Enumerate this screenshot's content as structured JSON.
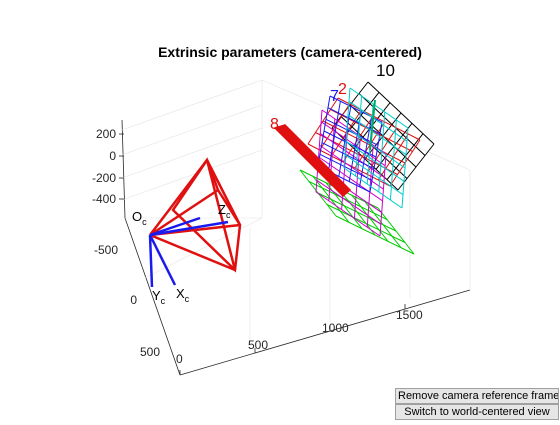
{
  "figure": {
    "title": "Extrinsic parameters (camera-centered)"
  },
  "axes": {
    "z_ticks": [
      "200",
      "0",
      "-200",
      "-400"
    ],
    "y_ticks": [
      "-500",
      "0",
      "500"
    ],
    "x_ticks": [
      "0",
      "500",
      "1000",
      "1500"
    ]
  },
  "camera": {
    "origin_label": "O",
    "origin_sub": "c",
    "x_label": "X",
    "x_sub": "c",
    "y_label": "Y",
    "y_sub": "c",
    "z_label": "Z",
    "z_sub": "c"
  },
  "boards": {
    "labels": [
      "10",
      "2",
      "7",
      "8"
    ],
    "colors": {
      "black": "#000000",
      "red": "#ff0000",
      "blue": "#0000ff",
      "magenta": "#cc00cc",
      "green": "#00cc00",
      "cyan": "#00cccc",
      "teal": "#00aa66"
    }
  },
  "buttons": {
    "remove_label": "Remove camera reference frame",
    "switch_label": "Switch to world-centered view"
  }
}
